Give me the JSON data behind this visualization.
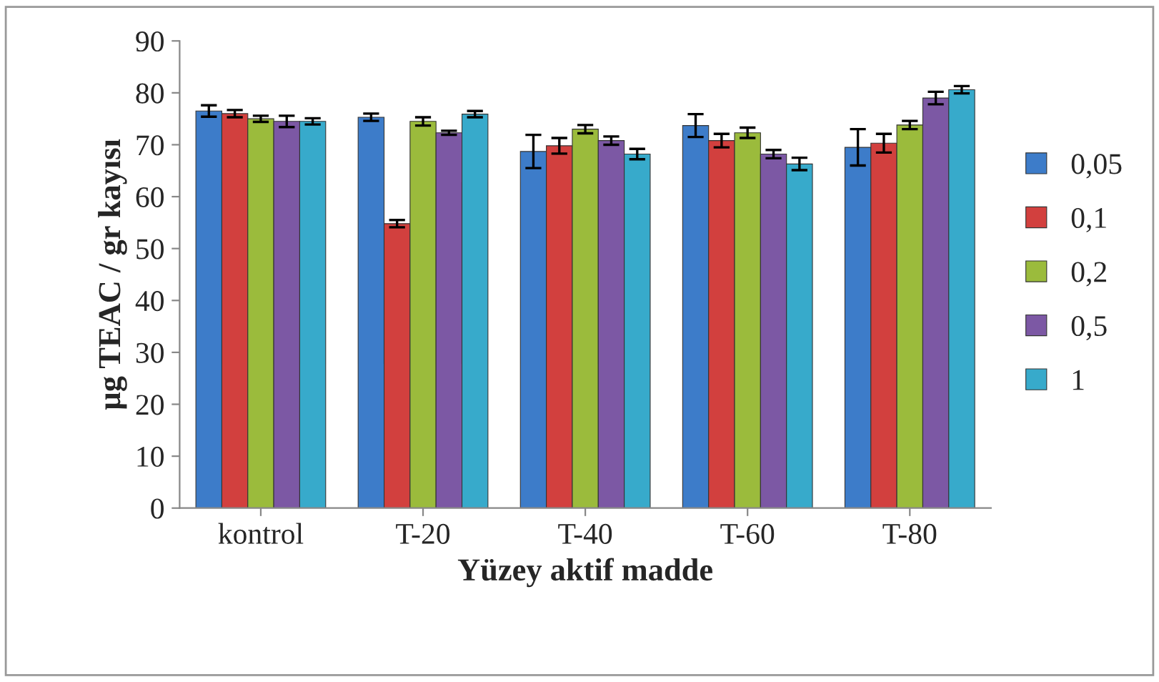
{
  "chart_data": {
    "type": "bar",
    "xlabel": "Yüzey aktif madde",
    "ylabel": "µg TEAC / gr kayısı",
    "categories": [
      "kontrol",
      "T-20",
      "T-40",
      "T-60",
      "T-80"
    ],
    "series": [
      {
        "name": "0,05",
        "color": "#3d7cc9",
        "values": [
          76.5,
          75.3,
          68.7,
          73.7,
          69.5
        ],
        "errors": [
          1.1,
          0.7,
          3.2,
          2.2,
          3.5
        ]
      },
      {
        "name": "0,1",
        "color": "#d2403e",
        "values": [
          76.0,
          54.8,
          69.8,
          70.8,
          70.3
        ],
        "errors": [
          0.7,
          0.7,
          1.5,
          1.3,
          1.8
        ]
      },
      {
        "name": "0,2",
        "color": "#9bbb3c",
        "values": [
          75.0,
          74.5,
          73.0,
          72.3,
          73.8
        ],
        "errors": [
          0.6,
          0.8,
          0.8,
          1.0,
          0.8
        ]
      },
      {
        "name": "0,5",
        "color": "#7c58a4",
        "values": [
          74.5,
          72.3,
          70.8,
          68.2,
          79.0
        ],
        "errors": [
          1.1,
          0.4,
          0.8,
          0.8,
          1.2
        ]
      },
      {
        "name": "1",
        "color": "#37aacb",
        "values": [
          74.5,
          75.9,
          68.2,
          66.3,
          80.6
        ],
        "errors": [
          0.6,
          0.6,
          1.0,
          1.2,
          0.7
        ]
      }
    ],
    "ylim": [
      0,
      90
    ],
    "yticks": [
      0,
      10,
      20,
      30,
      40,
      50,
      60,
      70,
      80,
      90
    ],
    "grid": false,
    "legend": "right"
  }
}
